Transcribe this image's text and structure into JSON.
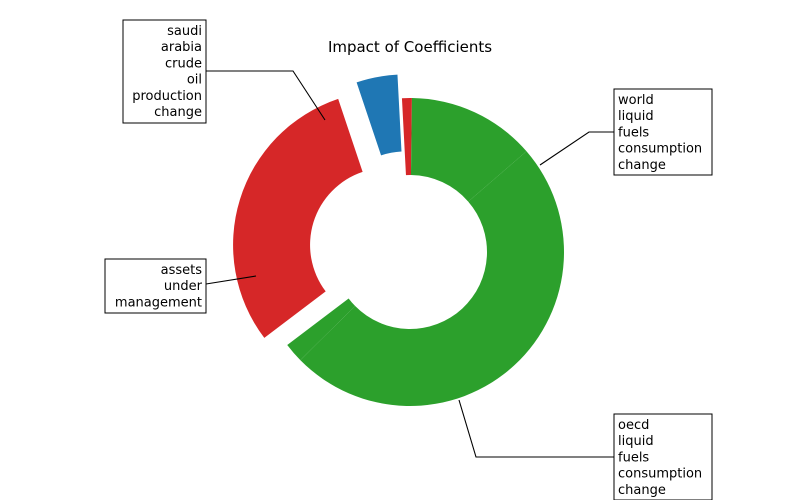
{
  "chart_data": {
    "type": "pie",
    "title": "Impact of Coefficients",
    "slices": [
      {
        "label": "world liquid fuels consumption change",
        "lines": [
          "world",
          "liquid",
          "fuels",
          "consumption",
          "change"
        ],
        "value": 0.6,
        "color": "#d62728",
        "side": "right"
      },
      {
        "label": "saudi arabia crude oil production change",
        "lines": [
          "saudi",
          "arabia",
          "crude",
          "oil",
          "production",
          "change"
        ],
        "value": 7.8,
        "color": "#2ca02c",
        "side": "left"
      },
      {
        "label": "assets under management",
        "lines": [
          "assets",
          "under",
          "management"
        ],
        "value": 28.4,
        "color": "#2ca02c",
        "side": "left"
      },
      {
        "label": "oecd liquid fuels consumption change",
        "lines": [
          "oecd",
          "liquid",
          "fuels",
          "consumption",
          "change"
        ],
        "value": 1.2,
        "color": "#2ca02c",
        "side": "right"
      },
      {
        "label": "",
        "lines": [],
        "value": 17.5,
        "color": "#d62728",
        "side": "right"
      },
      {
        "label": "",
        "lines": [],
        "value": 2.5,
        "color": "#1f77b4",
        "side": "right"
      }
    ],
    "start_angle_deg": 93,
    "direction": "clockwise",
    "donut": true,
    "legend": "none"
  }
}
